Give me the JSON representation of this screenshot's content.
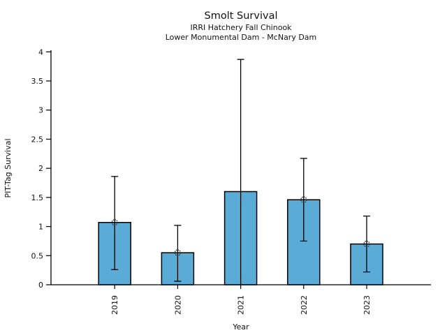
{
  "window": {
    "background": "#ffffff"
  },
  "chart_data": {
    "type": "bar",
    "title": "Smolt Survival",
    "subtitle_line1": "IRRI Hatchery Fall Chinook",
    "subtitle_line2": "Lower Monumental Dam - McNary Dam",
    "xlabel": "Year",
    "ylabel": "PIT-Tag Survival",
    "categories": [
      "2019",
      "2020",
      "2021",
      "2022",
      "2023"
    ],
    "values": [
      1.07,
      0.55,
      1.6,
      1.46,
      0.7
    ],
    "error_low": [
      0.26,
      0.06,
      0.0,
      0.75,
      0.22
    ],
    "error_high": [
      1.86,
      1.02,
      3.87,
      2.17,
      1.18
    ],
    "point_markers": [
      true,
      true,
      false,
      true,
      true
    ],
    "lower_cap": [
      true,
      true,
      false,
      true,
      true
    ],
    "ylim": [
      0,
      4
    ],
    "ytick_step": 0.5,
    "ytick_labels": [
      "0",
      "0.5",
      "1",
      "1.5",
      "2",
      "2.5",
      "3",
      "3.5",
      "4"
    ],
    "xtick_rotation_deg": 90,
    "grid": false,
    "legend": null,
    "bar_color": "#5aacd6",
    "bar_edge_color": "#000000",
    "error_bar_color": "#000000",
    "axis_color": "#000000"
  }
}
